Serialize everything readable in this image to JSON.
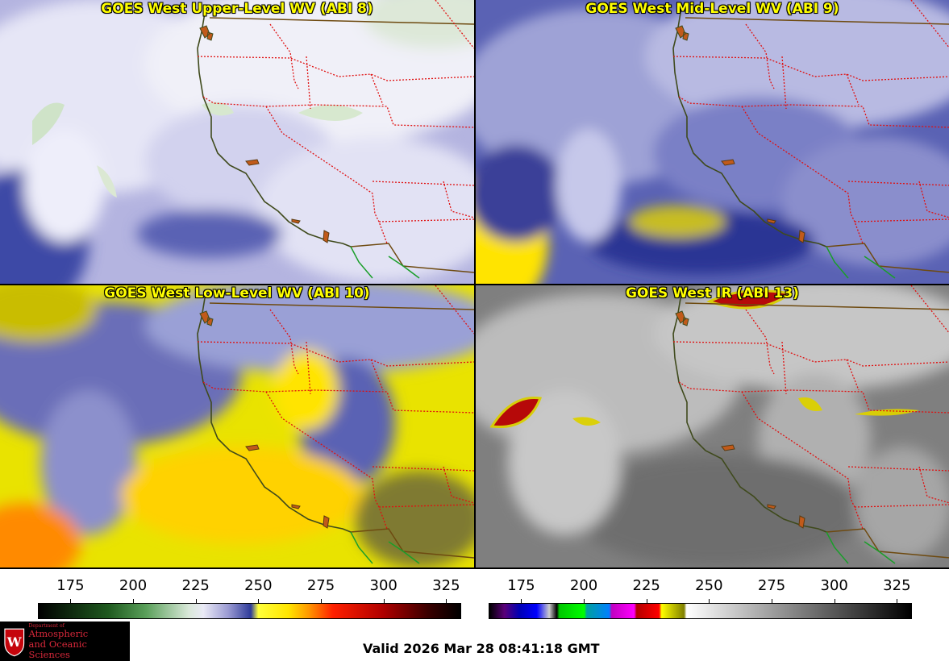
{
  "panels": [
    {
      "key": "upper",
      "title": "GOES West Upper-Level WV (ABI 8)"
    },
    {
      "key": "mid",
      "title": "GOES West Mid-Level WV (ABI 9)"
    },
    {
      "key": "low",
      "title": "GOES West Low-Level WV (ABI 10)"
    },
    {
      "key": "ir",
      "title": "GOES West IR (ABI 13)"
    }
  ],
  "wv_scale": {
    "ticks": [
      "175",
      "200",
      "225",
      "250",
      "275",
      "300",
      "325"
    ],
    "tick_values": [
      175,
      200,
      225,
      250,
      275,
      300,
      325
    ],
    "range": [
      162,
      331
    ],
    "stops": [
      {
        "v": 162,
        "c": "#000000"
      },
      {
        "v": 190,
        "c": "#1f5a1f"
      },
      {
        "v": 205,
        "c": "#5aa05a"
      },
      {
        "v": 222,
        "c": "#d8e8d8"
      },
      {
        "v": 228,
        "c": "#eaeaf6"
      },
      {
        "v": 238,
        "c": "#9a9ad2"
      },
      {
        "v": 247,
        "c": "#2e3b9a"
      },
      {
        "v": 250,
        "c": "#ffff3a"
      },
      {
        "v": 262,
        "c": "#ffe600"
      },
      {
        "v": 270,
        "c": "#ff9a00"
      },
      {
        "v": 280,
        "c": "#ff2000"
      },
      {
        "v": 300,
        "c": "#b00000"
      },
      {
        "v": 318,
        "c": "#3a0000"
      },
      {
        "v": 331,
        "c": "#000000"
      }
    ]
  },
  "ir_scale": {
    "ticks": [
      "175",
      "200",
      "225",
      "250",
      "275",
      "300",
      "325"
    ],
    "tick_values": [
      175,
      200,
      225,
      250,
      275,
      300,
      325
    ],
    "range": [
      162,
      331
    ],
    "stops": [
      {
        "v": 162,
        "c": "#000000"
      },
      {
        "v": 168,
        "c": "#5a0078"
      },
      {
        "v": 174,
        "c": "#0000b4"
      },
      {
        "v": 181,
        "c": "#0000ff"
      },
      {
        "v": 186,
        "c": "#cccccc"
      },
      {
        "v": 189,
        "c": "#000000"
      },
      {
        "v": 190,
        "c": "#00c800"
      },
      {
        "v": 200,
        "c": "#00ff00"
      },
      {
        "v": 201,
        "c": "#00a0a0"
      },
      {
        "v": 210,
        "c": "#0080ff"
      },
      {
        "v": 211,
        "c": "#c000c0"
      },
      {
        "v": 220,
        "c": "#ff00ff"
      },
      {
        "v": 221,
        "c": "#b40000"
      },
      {
        "v": 230,
        "c": "#ff0000"
      },
      {
        "v": 231,
        "c": "#ffff00"
      },
      {
        "v": 240,
        "c": "#808000"
      },
      {
        "v": 241,
        "c": "#ffffff"
      },
      {
        "v": 331,
        "c": "#000000"
      }
    ]
  },
  "logo": {
    "dept": "Department of",
    "line1": "Atmospheric",
    "line2": "and Oceanic Sciences"
  },
  "valid_text": "Valid 2026 Mar 28 08:41:18 GMT"
}
